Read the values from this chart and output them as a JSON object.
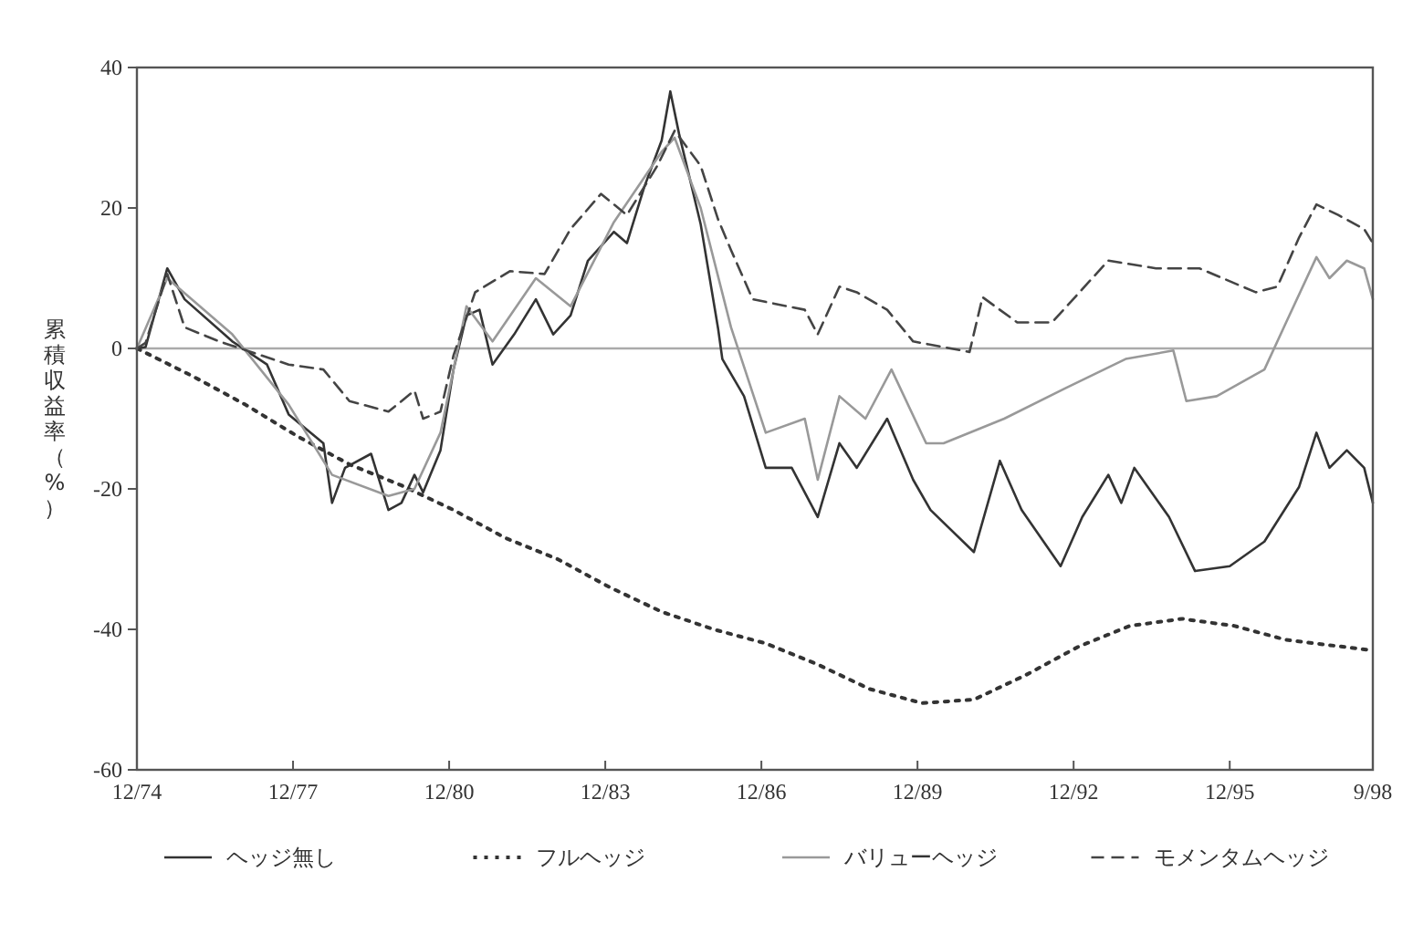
{
  "chart_data": {
    "type": "line",
    "ylabel": "累積収益率（%）",
    "xlim": [
      "1974-12",
      "1998-09"
    ],
    "xticks": [
      {
        "value": "1974-12",
        "label": "12/74"
      },
      {
        "value": "1977-12",
        "label": "12/77"
      },
      {
        "value": "1980-12",
        "label": "12/80"
      },
      {
        "value": "1983-12",
        "label": "12/83"
      },
      {
        "value": "1986-12",
        "label": "12/86"
      },
      {
        "value": "1989-12",
        "label": "12/89"
      },
      {
        "value": "1992-12",
        "label": "12/92"
      },
      {
        "value": "1995-12",
        "label": "12/95"
      },
      {
        "value": "1998-09",
        "label": "9/98"
      }
    ],
    "ylim": [
      -60,
      40
    ],
    "yticks": [
      -60,
      -40,
      -20,
      0,
      20,
      40
    ],
    "ref_lines": [
      {
        "axis": "y",
        "value": 0,
        "color": "#aaaaaa"
      }
    ],
    "grid": false,
    "legend": "bottom",
    "series": [
      {
        "name": "ヘッジ無し",
        "color": "#333333",
        "line_style": "solid",
        "x": [
          "1974-12",
          "1975-02",
          "1975-07",
          "1975-11",
          "1976-10",
          "1977-06",
          "1977-11",
          "1978-07",
          "1978-09",
          "1978-12",
          "1979-06",
          "1979-10",
          "1980-01",
          "1980-04",
          "1980-06",
          "1980-10",
          "1981-01",
          "1981-04",
          "1981-07",
          "1981-10",
          "1982-03",
          "1982-08",
          "1982-12",
          "1983-04",
          "1983-08",
          "1984-02",
          "1984-05",
          "1984-09",
          "1985-01",
          "1985-03",
          "1985-05",
          "1985-10",
          "1986-02",
          "1986-03",
          "1986-08",
          "1987-01",
          "1987-07",
          "1988-01",
          "1988-06",
          "1988-10",
          "1989-05",
          "1989-11",
          "1990-03",
          "1991-01",
          "1991-07",
          "1991-12",
          "1992-09",
          "1993-02",
          "1993-08",
          "1993-11",
          "1994-02",
          "1994-10",
          "1995-04",
          "1995-12",
          "1996-08",
          "1997-04",
          "1997-08",
          "1997-11",
          "1998-03",
          "1998-07",
          "1998-09"
        ],
        "values": [
          0,
          0.2,
          11.4,
          7,
          1,
          -2.3,
          -9.4,
          -13.5,
          -22,
          -17,
          -15,
          -23,
          -22,
          -18,
          -20.5,
          -14.5,
          -3,
          4.7,
          5.5,
          -2.3,
          2,
          7,
          2,
          4.7,
          12.5,
          16.6,
          15,
          23,
          29.6,
          36.6,
          30.6,
          17.7,
          2.9,
          -1.5,
          -6.8,
          -17,
          -17,
          -24,
          -13.5,
          -17,
          -10,
          -18.7,
          -23,
          -29,
          -16,
          -23,
          -31,
          -24,
          -18,
          -22,
          -17,
          -24,
          -31.7,
          -31,
          -27.5,
          -19.7,
          -12,
          -17,
          -14.5,
          -17,
          -22
        ]
      },
      {
        "name": "フルヘッジ",
        "color": "#333333",
        "line_style": "dotted",
        "x": [
          "1974-12",
          "1976-01",
          "1977-01",
          "1978-01",
          "1979-01",
          "1980-01",
          "1981-01",
          "1982-01",
          "1983-01",
          "1984-01",
          "1985-01",
          "1986-01",
          "1987-01",
          "1988-01",
          "1989-01",
          "1990-01",
          "1991-01",
          "1992-01",
          "1993-01",
          "1994-01",
          "1995-01",
          "1996-01",
          "1997-01",
          "1998-09"
        ],
        "values": [
          0,
          -4,
          -8,
          -12.5,
          -16.5,
          -19.5,
          -23,
          -27,
          -30,
          -34,
          -37.5,
          -40,
          -42,
          -45,
          -48.5,
          -50.5,
          -50,
          -46.5,
          -42.5,
          -39.5,
          -38.5,
          -39.5,
          -41.5,
          -43
        ]
      },
      {
        "name": "バリューヘッジ",
        "color": "#999999",
        "line_style": "solid",
        "x": [
          "1974-12",
          "1975-07",
          "1976-10",
          "1977-11",
          "1978-09",
          "1979-10",
          "1980-04",
          "1980-10",
          "1981-04",
          "1981-10",
          "1982-08",
          "1983-04",
          "1984-02",
          "1985-01",
          "1985-04",
          "1985-10",
          "1986-05",
          "1987-01",
          "1987-10",
          "1988-01",
          "1988-06",
          "1988-12",
          "1989-06",
          "1990-02",
          "1990-06",
          "1991-08",
          "1992-10",
          "1993-12",
          "1994-11",
          "1995-02",
          "1995-09",
          "1996-08",
          "1997-01",
          "1997-08",
          "1997-11",
          "1998-03",
          "1998-07",
          "1998-09"
        ],
        "values": [
          0,
          10,
          2,
          -8,
          -18,
          -21,
          -20,
          -12,
          6,
          1,
          10,
          6,
          18,
          28,
          30,
          20,
          3,
          -12,
          -10,
          -18.7,
          -6.8,
          -10,
          -3,
          -13.5,
          -13.5,
          -10,
          -5.7,
          -1.5,
          -0.3,
          -7.5,
          -6.8,
          -3,
          3.7,
          13,
          10,
          12.5,
          11.4,
          7
        ]
      },
      {
        "name": "モメンタムヘッジ",
        "color": "#444444",
        "line_style": "dashed",
        "x": [
          "1974-12",
          "1975-02",
          "1975-07",
          "1975-11",
          "1976-07",
          "1977-11",
          "1978-07",
          "1979-01",
          "1979-10",
          "1980-04",
          "1980-06",
          "1980-10",
          "1981-01",
          "1981-06",
          "1982-02",
          "1982-10",
          "1983-04",
          "1983-11",
          "1984-05",
          "1984-12",
          "1985-04",
          "1985-10",
          "1986-02",
          "1986-05",
          "1986-10",
          "1987-10",
          "1988-01",
          "1988-06",
          "1988-10",
          "1989-05",
          "1989-11",
          "1990-12",
          "1991-03",
          "1991-11",
          "1992-07",
          "1993-08",
          "1994-07",
          "1995-05",
          "1996-06",
          "1996-11",
          "1997-04",
          "1997-08",
          "1998-01",
          "1998-07",
          "1998-09"
        ],
        "values": [
          0,
          0.8,
          10.6,
          3,
          1,
          -2.3,
          -3,
          -7.5,
          -9,
          -6,
          -10,
          -9,
          -1,
          8,
          11,
          10.6,
          17,
          22,
          19,
          26,
          31,
          26,
          18.4,
          14,
          7,
          5.5,
          2,
          8.8,
          8,
          5.5,
          1,
          -0.5,
          7.3,
          3.7,
          3.7,
          12.5,
          11.4,
          11.4,
          8,
          8.8,
          15.8,
          20.5,
          19,
          17,
          15
        ]
      }
    ]
  }
}
